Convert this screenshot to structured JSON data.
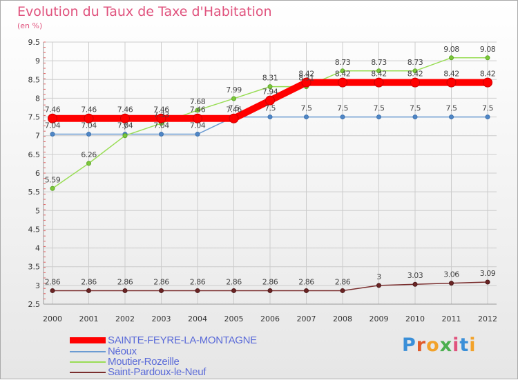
{
  "chart_data": {
    "type": "line",
    "title": "Evolution du Taux de Taxe d'Habitation",
    "subtitle": "(en %)",
    "xlabel": "",
    "ylabel": "",
    "x": [
      "2000",
      "2001",
      "2002",
      "2003",
      "2004",
      "2005",
      "2006",
      "2007",
      "2008",
      "2009",
      "2010",
      "2011",
      "2012"
    ],
    "ylim": [
      2.5,
      9.5
    ],
    "yticks": [
      "2.5",
      "3",
      "3.5",
      "4",
      "4.5",
      "5",
      "5.5",
      "6",
      "6.5",
      "7",
      "7.5",
      "8",
      "8.5",
      "9",
      "9.5"
    ],
    "legend_position": "bottom-left",
    "series": [
      {
        "name": "SAINTE-FEYRE-LA-MONTAGNE",
        "color": "#ff0000",
        "values": [
          7.46,
          7.46,
          7.46,
          7.46,
          7.46,
          7.46,
          7.94,
          8.42,
          8.42,
          8.42,
          8.42,
          8.42,
          8.42
        ],
        "labels": [
          "7.46",
          "7.46",
          "7.46",
          "7.46",
          "7.46",
          "7.46",
          "7.94",
          "8.42",
          "8.42",
          "8.42",
          "8.42",
          "8.42",
          "8.42"
        ]
      },
      {
        "name": "Néoux",
        "color": "#6b9bd2",
        "values": [
          7.04,
          7.04,
          7.04,
          7.04,
          7.04,
          7.5,
          7.5,
          7.5,
          7.5,
          7.5,
          7.5,
          7.5,
          7.5
        ],
        "labels": [
          "7.04",
          "7.04",
          "7.04",
          "7.04",
          "7.04",
          "7.5",
          "7.5",
          "7.5",
          "7.5",
          "7.5",
          "7.5",
          "7.5",
          "7.5"
        ]
      },
      {
        "name": "Moutier-Rozeille",
        "color": "#99dd55",
        "values": [
          5.59,
          6.26,
          7.0,
          7.33,
          7.68,
          7.99,
          8.31,
          8.31,
          8.73,
          8.73,
          8.73,
          9.08,
          9.08
        ],
        "labels": [
          "5.59",
          "6.26",
          "7",
          "7.33",
          "7.68",
          "7.99",
          "8.31",
          "8.31",
          "8.73",
          "8.73",
          "8.73",
          "9.08",
          "9.08"
        ]
      },
      {
        "name": "Saint-Pardoux-le-Neuf",
        "color": "#7a2e2e",
        "values": [
          2.86,
          2.86,
          2.86,
          2.86,
          2.86,
          2.86,
          2.86,
          2.86,
          2.86,
          3.0,
          3.03,
          3.06,
          3.09
        ],
        "labels": [
          "2.86",
          "2.86",
          "2.86",
          "2.86",
          "2.86",
          "2.86",
          "2.86",
          "2.86",
          "2.86",
          "3",
          "3.03",
          "3.06",
          "3.09"
        ]
      }
    ]
  },
  "legend": {
    "items": [
      {
        "label": "SAINTE-FEYRE-LA-MONTAGNE",
        "color": "#ff0000"
      },
      {
        "label": "Néoux",
        "color": "#6b9bd2"
      },
      {
        "label": "Moutier-Rozeille",
        "color": "#99dd55"
      },
      {
        "label": "Saint-Pardoux-le-Neuf",
        "color": "#7a2e2e"
      }
    ]
  },
  "logo": {
    "letters": [
      "P",
      "r",
      "o",
      "x",
      "i",
      "t",
      "i"
    ],
    "colors": [
      "#3a8fd8",
      "#e05a2a",
      "#f2a22a",
      "#4caf50",
      "#e0527d",
      "#3a8fd8",
      "#f2a22a"
    ]
  }
}
